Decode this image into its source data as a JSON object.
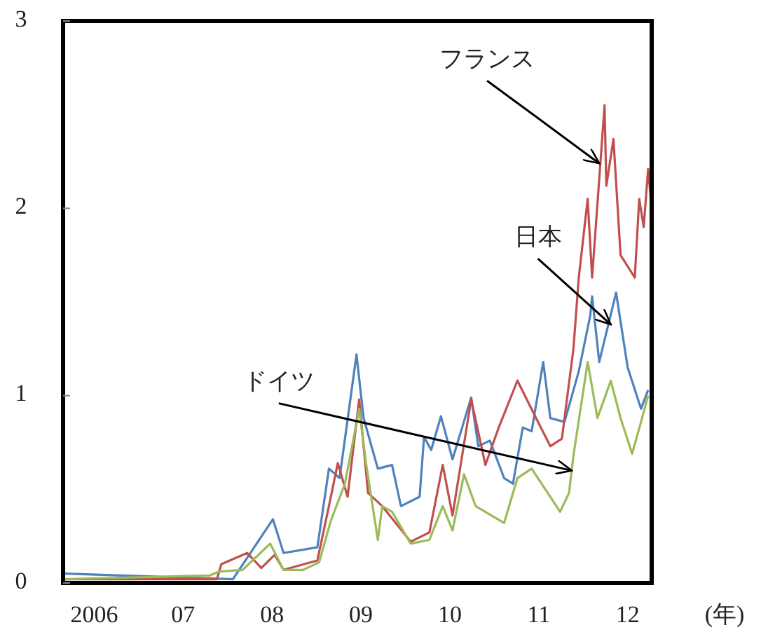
{
  "chart_data": {
    "type": "line",
    "xlabel": "(年)",
    "xlim": [
      2005.65,
      2012.27
    ],
    "ylim": [
      0,
      3
    ],
    "xticks": [
      {
        "value": 2006,
        "label": "2006"
      },
      {
        "value": 2007,
        "label": "07"
      },
      {
        "value": 2008,
        "label": "08"
      },
      {
        "value": 2009,
        "label": "09"
      },
      {
        "value": 2010,
        "label": "10"
      },
      {
        "value": 2011,
        "label": "11"
      },
      {
        "value": 2012,
        "label": "12"
      }
    ],
    "yticks": [
      0,
      1,
      2,
      3
    ],
    "grid": false,
    "marker": "none",
    "line_style": "solid",
    "series": [
      {
        "color": "#4f81bd",
        "x": [
          2005.67,
          2007.56,
          2008.01,
          2008.13,
          2008.51,
          2008.64,
          2008.76,
          2008.95,
          2009.03,
          2009.19,
          2009.35,
          2009.45,
          2009.66,
          2009.71,
          2009.79,
          2009.9,
          2010.03,
          2010.24,
          2010.32,
          2010.45,
          2010.61,
          2010.71,
          2010.82,
          2010.92,
          2011.05,
          2011.13,
          2011.29,
          2011.45,
          2011.58,
          2011.6,
          2011.68,
          2011.87,
          2012.0,
          2012.15,
          2012.23
        ],
        "values": [
          0.05,
          0.02,
          0.34,
          0.16,
          0.19,
          0.61,
          0.56,
          1.22,
          0.88,
          0.61,
          0.63,
          0.41,
          0.46,
          0.78,
          0.71,
          0.89,
          0.66,
          0.99,
          0.73,
          0.76,
          0.56,
          0.53,
          0.83,
          0.81,
          1.18,
          0.88,
          0.86,
          1.13,
          1.43,
          1.53,
          1.18,
          1.55,
          1.15,
          0.93,
          1.03
        ]
      },
      {
        "color": "#c0504d",
        "x": [
          2005.67,
          2007.38,
          2007.43,
          2007.72,
          2007.88,
          2008.03,
          2008.13,
          2008.51,
          2008.64,
          2008.74,
          2008.85,
          2008.98,
          2009.08,
          2009.24,
          2009.56,
          2009.77,
          2009.92,
          2010.03,
          2010.24,
          2010.4,
          2010.55,
          2010.76,
          2010.97,
          2011.13,
          2011.26,
          2011.39,
          2011.45,
          2011.55,
          2011.6,
          2011.74,
          2011.76,
          2011.84,
          2011.92,
          2012.08,
          2012.13,
          2012.18,
          2012.23,
          2012.26
        ],
        "values": [
          0.02,
          0.02,
          0.1,
          0.16,
          0.08,
          0.15,
          0.07,
          0.12,
          0.41,
          0.64,
          0.46,
          0.98,
          0.48,
          0.41,
          0.22,
          0.27,
          0.63,
          0.36,
          0.98,
          0.63,
          0.83,
          1.08,
          0.88,
          0.73,
          0.77,
          1.25,
          1.63,
          2.05,
          1.63,
          2.55,
          2.12,
          2.37,
          1.75,
          1.63,
          2.05,
          1.9,
          2.21,
          2.05
        ]
      },
      {
        "color": "#9bbb59",
        "x": [
          2005.67,
          2007.3,
          2007.4,
          2007.67,
          2007.98,
          2008.13,
          2008.35,
          2008.53,
          2008.66,
          2008.82,
          2008.98,
          2009.06,
          2009.19,
          2009.24,
          2009.35,
          2009.56,
          2009.77,
          2009.92,
          2010.03,
          2010.16,
          2010.29,
          2010.61,
          2010.76,
          2010.92,
          2011.13,
          2011.24,
          2011.34,
          2011.39,
          2011.55,
          2011.66,
          2011.81,
          2011.92,
          2012.05,
          2012.15,
          2012.23
        ],
        "values": [
          0.02,
          0.04,
          0.06,
          0.07,
          0.21,
          0.07,
          0.07,
          0.11,
          0.33,
          0.53,
          0.93,
          0.63,
          0.23,
          0.41,
          0.38,
          0.21,
          0.23,
          0.41,
          0.28,
          0.58,
          0.41,
          0.32,
          0.56,
          0.61,
          0.46,
          0.38,
          0.48,
          0.68,
          1.18,
          0.88,
          1.08,
          0.88,
          0.69,
          0.86,
          1.0
        ]
      }
    ],
    "annotations": [
      {
        "text": "フランス",
        "x": 2011.68,
        "y": 2.24
      },
      {
        "text": "日本",
        "x": 2011.81,
        "y": 1.38
      },
      {
        "text": "ドイツ",
        "x": 2011.37,
        "y": 0.6
      }
    ]
  }
}
